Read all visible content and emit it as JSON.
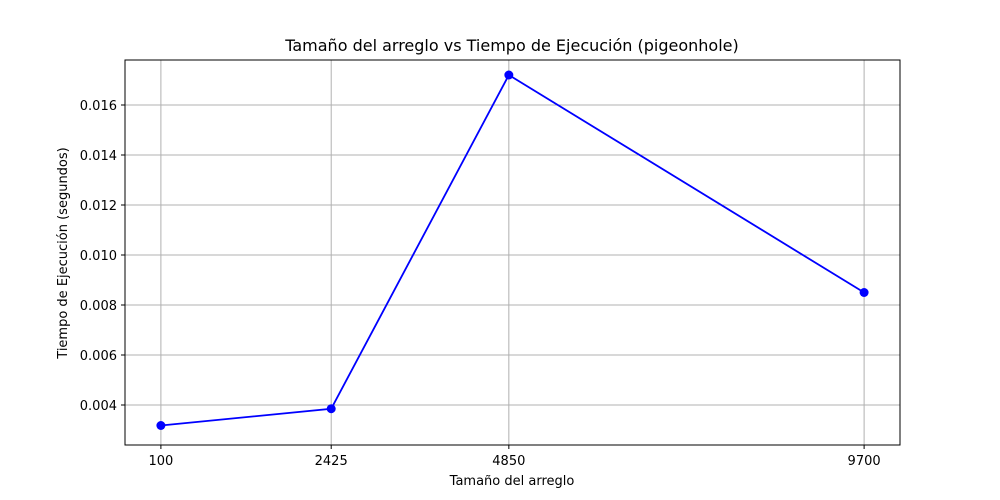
{
  "chart_data": {
    "type": "line",
    "title": "Tamaño del arreglo vs Tiempo de Ejecución (pigeonhole)",
    "xlabel": "Tamaño del arreglo",
    "ylabel": "Tiempo de Ejecución (segundos)",
    "x": [
      100,
      2425,
      4850,
      9700
    ],
    "x_tick_labels": [
      "100",
      "2425",
      "4850",
      "9700"
    ],
    "y_ticks": [
      0.004,
      0.006,
      0.008,
      0.01,
      0.012,
      0.014,
      0.016
    ],
    "y_tick_labels": [
      "0.004",
      "0.006",
      "0.008",
      "0.010",
      "0.012",
      "0.014",
      "0.016"
    ],
    "xlim": [
      -390,
      10190
    ],
    "ylim": [
      0.0024,
      0.0178
    ],
    "grid": true,
    "series": [
      {
        "values": [
          0.00318,
          0.00385,
          0.0172,
          0.0085
        ],
        "color": "#0000ff",
        "marker": "circle"
      }
    ]
  }
}
